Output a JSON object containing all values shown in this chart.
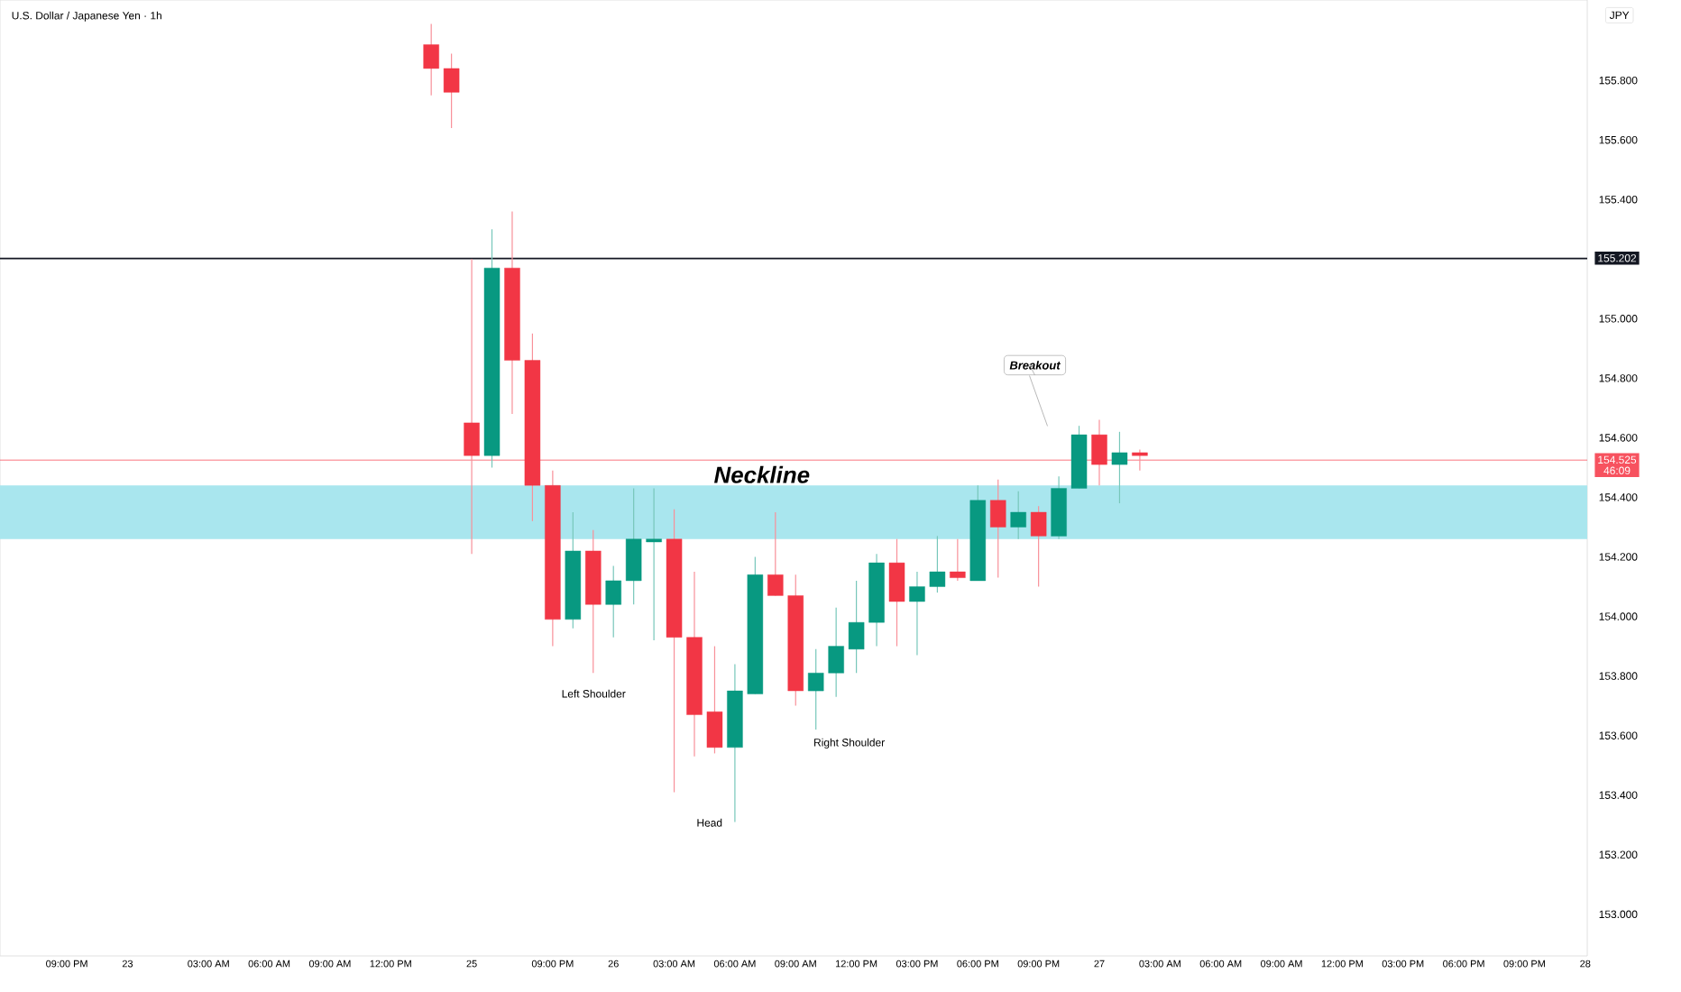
{
  "chart_data": {
    "type": "candlestick",
    "title": "U.S. Dollar / Japanese Yen · 1h",
    "ylabel": "JPY",
    "categories": [
      null,
      null,
      null,
      "09:00 PM",
      null,
      null,
      "23",
      null,
      null,
      null,
      "03:00 AM",
      null,
      null,
      "06:00 AM",
      null,
      null,
      "09:00 AM",
      null,
      null,
      "12:00 PM",
      null,
      null,
      null,
      "25",
      null,
      null,
      null,
      "09:00 PM",
      null,
      null,
      "26",
      null,
      null,
      "03:00 AM",
      null,
      null,
      "06:00 AM",
      null,
      null,
      "09:00 AM",
      null,
      null,
      "12:00 PM",
      null,
      null,
      "03:00 PM",
      null,
      null,
      "06:00 PM",
      null,
      null,
      "09:00 PM",
      null,
      null,
      "27",
      null,
      null,
      "03:00 AM",
      null,
      null,
      "06:00 AM",
      null,
      null,
      "09:00 AM",
      null,
      null,
      "12:00 PM",
      null,
      null,
      "03:00 PM",
      null,
      null,
      "06:00 PM",
      null,
      null,
      "09:00 PM",
      null,
      null,
      "28"
    ],
    "ohlc": [
      null,
      null,
      null,
      null,
      null,
      null,
      null,
      null,
      null,
      null,
      null,
      null,
      null,
      null,
      null,
      null,
      null,
      null,
      null,
      null,
      null,
      [
        155.92,
        155.99,
        155.75,
        155.84
      ],
      [
        155.84,
        155.89,
        155.64,
        155.76
      ],
      [
        154.65,
        155.2,
        154.21,
        154.54
      ],
      [
        154.54,
        155.3,
        154.5,
        155.17
      ],
      [
        155.17,
        155.36,
        154.68,
        154.86
      ],
      [
        154.86,
        154.95,
        154.32,
        154.44
      ],
      [
        154.44,
        154.49,
        153.9,
        153.99
      ],
      [
        153.99,
        154.35,
        153.96,
        154.22
      ],
      [
        154.22,
        154.29,
        153.81,
        154.04
      ],
      [
        154.04,
        154.17,
        153.93,
        154.12
      ],
      [
        154.12,
        154.43,
        154.04,
        154.26
      ],
      [
        154.25,
        154.43,
        153.92,
        154.26
      ],
      [
        154.26,
        154.36,
        153.41,
        153.93
      ],
      [
        153.93,
        154.15,
        153.53,
        153.67
      ],
      [
        153.68,
        153.9,
        153.54,
        153.56
      ],
      [
        153.56,
        153.84,
        153.31,
        153.75
      ],
      [
        153.74,
        154.2,
        153.74,
        154.14
      ],
      [
        154.14,
        154.35,
        154.07,
        154.07
      ],
      [
        154.07,
        154.14,
        153.7,
        153.75
      ],
      [
        153.75,
        153.89,
        153.62,
        153.81
      ],
      [
        153.81,
        154.03,
        153.73,
        153.9
      ],
      [
        153.89,
        154.12,
        153.81,
        153.98
      ],
      [
        153.98,
        154.21,
        153.9,
        154.18
      ],
      [
        154.18,
        154.26,
        153.9,
        154.05
      ],
      [
        154.05,
        154.15,
        153.87,
        154.1
      ],
      [
        154.1,
        154.27,
        154.08,
        154.15
      ],
      [
        154.15,
        154.26,
        154.12,
        154.13
      ],
      [
        154.12,
        154.44,
        154.12,
        154.39
      ],
      [
        154.39,
        154.46,
        154.13,
        154.3
      ],
      [
        154.3,
        154.42,
        154.26,
        154.35
      ],
      [
        154.35,
        154.37,
        154.1,
        154.27
      ],
      [
        154.27,
        154.47,
        154.26,
        154.43
      ],
      [
        154.43,
        154.64,
        154.43,
        154.61
      ],
      [
        154.61,
        154.66,
        154.44,
        154.51
      ],
      [
        154.51,
        154.62,
        154.38,
        154.55
      ],
      [
        154.55,
        154.56,
        154.49,
        154.54
      ],
      null,
      null,
      null,
      null,
      null,
      null,
      null,
      null,
      null,
      null,
      null,
      null,
      null,
      null,
      null,
      null,
      null,
      null,
      null,
      null,
      null,
      null
    ],
    "ylim": [
      152.86,
      156.07
    ],
    "yticks": [
      {
        "value": 153.0,
        "label": "153.000"
      },
      {
        "value": 153.2,
        "label": "153.200"
      },
      {
        "value": 153.4,
        "label": "153.400"
      },
      {
        "value": 153.6,
        "label": "153.600"
      },
      {
        "value": 153.8,
        "label": "153.800"
      },
      {
        "value": 154.0,
        "label": "154.000"
      },
      {
        "value": 154.2,
        "label": "154.200"
      },
      {
        "value": 154.4,
        "label": "154.400"
      },
      {
        "value": 154.6,
        "label": "154.600"
      },
      {
        "value": 154.8,
        "label": "154.800"
      },
      {
        "value": 155.0,
        "label": "155.000"
      },
      {
        "value": 155.4,
        "label": "155.400"
      },
      {
        "value": 155.6,
        "label": "155.600"
      },
      {
        "value": 155.8,
        "label": "155.800"
      }
    ],
    "ref_lines": [
      {
        "axis": "y",
        "value": 155.202,
        "label": "155.202",
        "color": "#131722",
        "line_style": "solid"
      },
      {
        "axis": "y",
        "value": 154.525,
        "label": "154.525",
        "color": "#f7525f",
        "line_style": "solid"
      }
    ],
    "bands": [
      {
        "axis": "y",
        "from": 154.26,
        "to": 154.44,
        "label": "Neckline",
        "color": "#a9e6ee"
      }
    ],
    "annotations": [
      "Left Shoulder",
      "Head",
      "Right Shoulder",
      "Breakout",
      "46:09"
    ]
  }
}
